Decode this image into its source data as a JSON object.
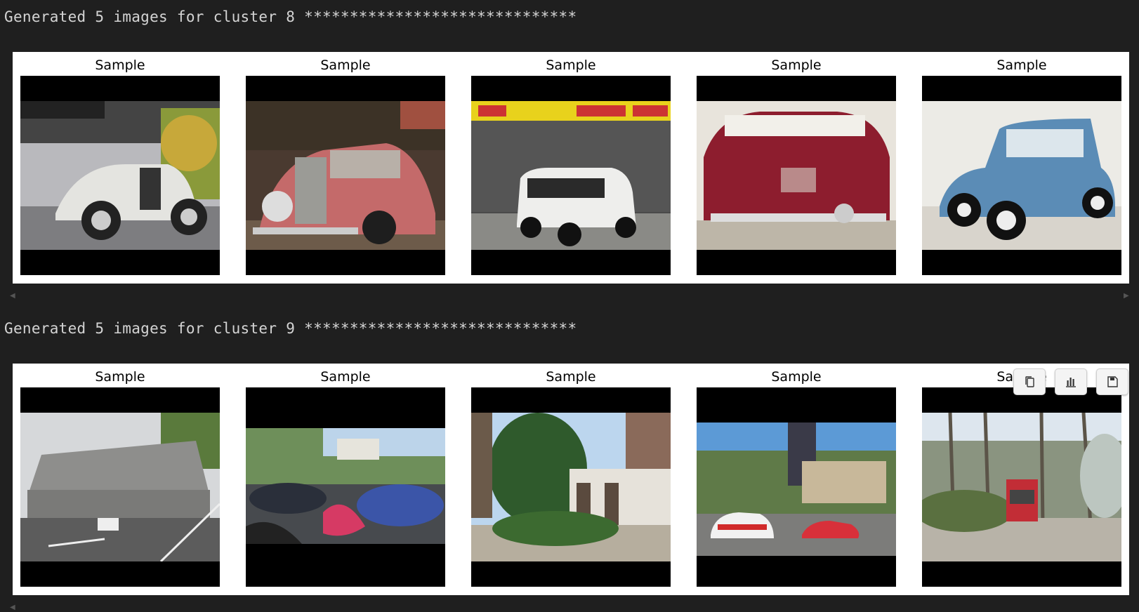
{
  "cells": [
    {
      "log_text": "Generated 5 images for cluster 8 ******************************",
      "samples": [
        {
          "title": "Sample"
        },
        {
          "title": "Sample"
        },
        {
          "title": "Sample"
        },
        {
          "title": "Sample"
        },
        {
          "title": "Sample"
        }
      ]
    },
    {
      "log_text": "Generated 5 images for cluster 9 ******************************",
      "samples": [
        {
          "title": "Sample"
        },
        {
          "title": "Sample"
        },
        {
          "title": "Sample"
        },
        {
          "title": "Sample"
        },
        {
          "title": "Sample"
        }
      ]
    }
  ],
  "toolbar": {
    "icons": [
      "copy-icon",
      "chart-icon",
      "save-icon"
    ]
  }
}
